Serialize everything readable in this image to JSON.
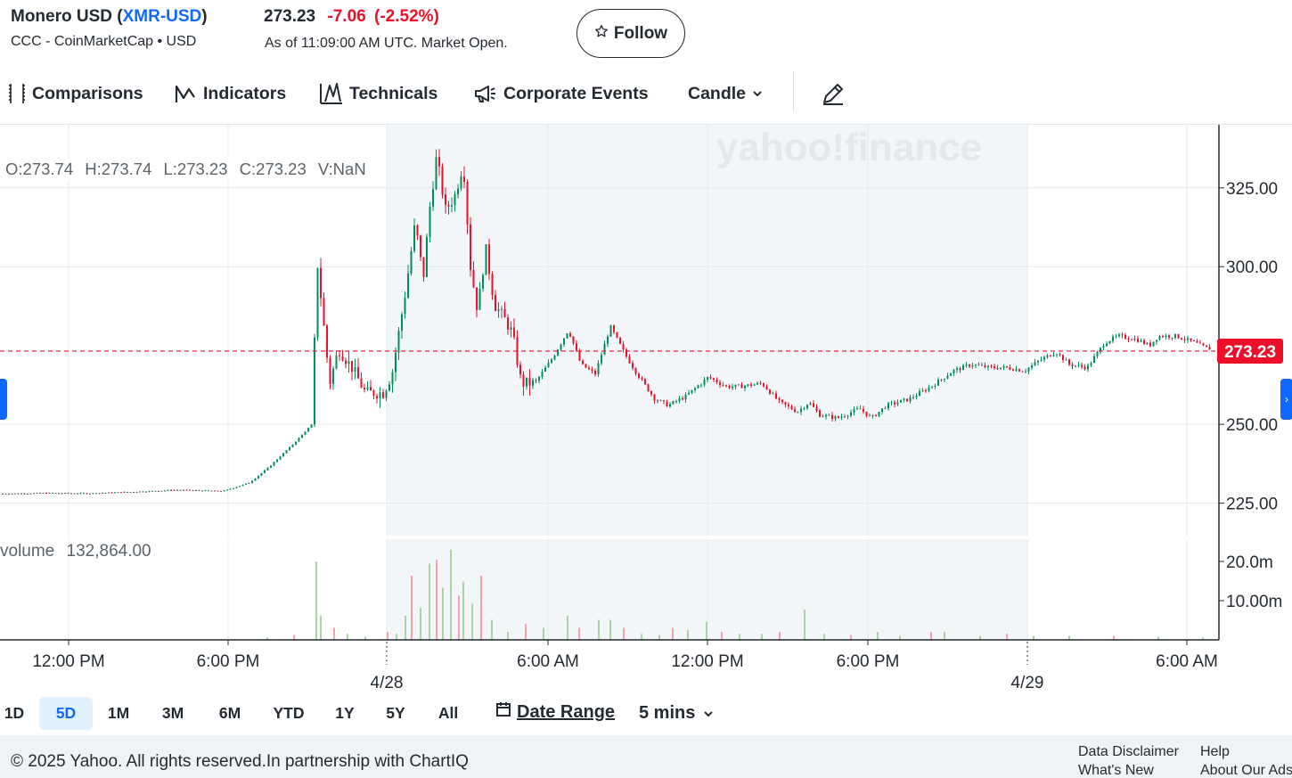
{
  "header": {
    "name": "Monero USD",
    "symbol": "XMR-USD",
    "source": "CCC - CoinMarketCap • USD",
    "price": "273.23",
    "change": "-7.06",
    "change_pct": "(-2.52%)",
    "as_of": "As of 11:09:00 AM UTC. Market Open.",
    "follow_label": "Follow"
  },
  "toolbar": {
    "comparisons": "Comparisons",
    "indicators": "Indicators",
    "technicals": "Technicals",
    "corporate_events": "Corporate Events",
    "chart_type": "Candle"
  },
  "legend": {
    "open": "O:273.74",
    "high": "H:273.74",
    "low": "L:273.23",
    "close": "C:273.23",
    "volume": "V:NaN"
  },
  "volume_label": {
    "name": "volume",
    "value": "132,864.00"
  },
  "watermark": "yahoo!finance",
  "chart_data": {
    "type": "candlestick",
    "title": "",
    "price_axis_ticks": [
      "325.00",
      "300.00",
      "250.00",
      "225.00"
    ],
    "volume_axis_ticks": [
      "20.0m",
      "10.00m"
    ],
    "current_price_label": "273.23",
    "x_tick_labels": [
      "12:00 PM",
      "6:00 PM",
      "6:00 AM",
      "12:00 PM",
      "6:00 PM",
      "6:00 AM"
    ],
    "date_labels": [
      "4/28",
      "4/29"
    ],
    "ylim": [
      215,
      345
    ],
    "colors": {
      "up": "#008f5b",
      "down": "#eb0f29",
      "neutral": "#5b636a",
      "current_line": "#eb0f29",
      "volume_up": "#a8d5a2",
      "volume_down": "#f5a3ab"
    },
    "close_trend": [
      [
        0,
        228
      ],
      [
        0.05,
        228.2
      ],
      [
        0.1,
        228.1
      ],
      [
        0.15,
        228.6
      ],
      [
        0.2,
        229.2
      ],
      [
        0.25,
        228.8
      ],
      [
        0.28,
        231.5
      ],
      [
        0.3,
        236
      ],
      [
        0.33,
        244
      ],
      [
        0.35,
        250
      ],
      [
        0.356,
        302
      ],
      [
        0.362,
        285
      ],
      [
        0.37,
        263
      ],
      [
        0.38,
        274
      ],
      [
        0.395,
        268
      ],
      [
        0.41,
        260
      ],
      [
        0.43,
        260
      ],
      [
        0.44,
        266
      ],
      [
        0.455,
        292
      ],
      [
        0.466,
        314
      ],
      [
        0.475,
        296
      ],
      [
        0.482,
        318
      ],
      [
        0.49,
        335
      ],
      [
        0.5,
        318
      ],
      [
        0.51,
        322
      ],
      [
        0.52,
        333
      ],
      [
        0.528,
        300
      ],
      [
        0.536,
        286
      ],
      [
        0.545,
        306
      ],
      [
        0.555,
        288
      ],
      [
        0.565,
        284
      ],
      [
        0.575,
        279
      ],
      [
        0.585,
        263
      ],
      [
        0.6,
        263
      ],
      [
        0.62,
        271
      ],
      [
        0.638,
        280
      ],
      [
        0.652,
        269
      ],
      [
        0.668,
        266
      ],
      [
        0.685,
        281
      ],
      [
        0.7,
        273
      ],
      [
        0.715,
        266
      ],
      [
        0.735,
        258
      ],
      [
        0.75,
        256
      ],
      [
        0.77,
        259
      ],
      [
        0.795,
        265
      ],
      [
        0.815,
        262
      ],
      [
        0.83,
        262
      ],
      [
        0.855,
        263
      ],
      [
        0.875,
        257
      ],
      [
        0.895,
        254
      ],
      [
        0.908,
        257
      ],
      [
        0.92,
        253
      ],
      [
        0.94,
        252
      ],
      [
        0.965,
        255
      ],
      [
        0.978,
        252
      ],
      [
        0.995,
        256
      ],
      [
        1.02,
        258
      ],
      [
        1.045,
        262
      ],
      [
        1.07,
        267
      ],
      [
        1.09,
        269
      ],
      [
        1.11,
        268
      ],
      [
        1.13,
        268
      ],
      [
        1.15,
        267
      ],
      [
        1.165,
        270
      ],
      [
        1.185,
        273
      ],
      [
        1.2,
        269
      ],
      [
        1.22,
        268
      ],
      [
        1.24,
        276
      ],
      [
        1.255,
        278
      ],
      [
        1.275,
        277
      ],
      [
        1.29,
        275
      ],
      [
        1.3,
        278
      ],
      [
        1.32,
        278
      ],
      [
        1.34,
        276
      ],
      [
        1.355,
        274
      ]
    ],
    "volumes_m": [
      [
        0.3,
        0.6
      ],
      [
        0.33,
        1.2
      ],
      [
        0.355,
        19.5
      ],
      [
        0.36,
        6
      ],
      [
        0.375,
        3
      ],
      [
        0.39,
        1.5
      ],
      [
        0.41,
        0.8
      ],
      [
        0.435,
        2
      ],
      [
        0.445,
        1.5
      ],
      [
        0.455,
        6
      ],
      [
        0.462,
        16
      ],
      [
        0.472,
        8
      ],
      [
        0.482,
        19
      ],
      [
        0.49,
        20
      ],
      [
        0.497,
        13
      ],
      [
        0.506,
        22.5
      ],
      [
        0.515,
        11
      ],
      [
        0.52,
        14.5
      ],
      [
        0.53,
        9
      ],
      [
        0.54,
        16
      ],
      [
        0.552,
        5
      ],
      [
        0.57,
        2
      ],
      [
        0.59,
        4
      ],
      [
        0.61,
        3
      ],
      [
        0.637,
        6
      ],
      [
        0.65,
        3
      ],
      [
        0.672,
        5
      ],
      [
        0.685,
        5
      ],
      [
        0.7,
        3
      ],
      [
        0.72,
        1.5
      ],
      [
        0.74,
        1.2
      ],
      [
        0.755,
        3
      ],
      [
        0.772,
        2.5
      ],
      [
        0.793,
        4.5
      ],
      [
        0.81,
        2
      ],
      [
        0.83,
        1.5
      ],
      [
        0.855,
        1.5
      ],
      [
        0.875,
        2
      ],
      [
        0.903,
        7.5
      ],
      [
        0.925,
        1.5
      ],
      [
        0.955,
        1.2
      ],
      [
        0.985,
        2
      ],
      [
        1.01,
        1
      ],
      [
        1.045,
        2
      ],
      [
        1.06,
        2
      ],
      [
        1.1,
        1
      ],
      [
        1.13,
        1.5
      ],
      [
        1.16,
        1
      ],
      [
        1.2,
        1
      ],
      [
        1.25,
        1
      ],
      [
        1.3,
        0.8
      ],
      [
        1.35,
        0.6
      ]
    ]
  },
  "ranges": [
    "1D",
    "5D",
    "1M",
    "3M",
    "6M",
    "YTD",
    "1Y",
    "5Y",
    "All"
  ],
  "active_range": "5D",
  "date_range_label": "Date Range",
  "interval_label": "5 mins",
  "footer": {
    "copyright": "© 2025 Yahoo. All rights reserved.In partnership with ChartIQ",
    "data_disclaimer": "Data Disclaimer",
    "help": "Help",
    "whats_new": "What's New",
    "about_ads": "About Our Ads"
  }
}
